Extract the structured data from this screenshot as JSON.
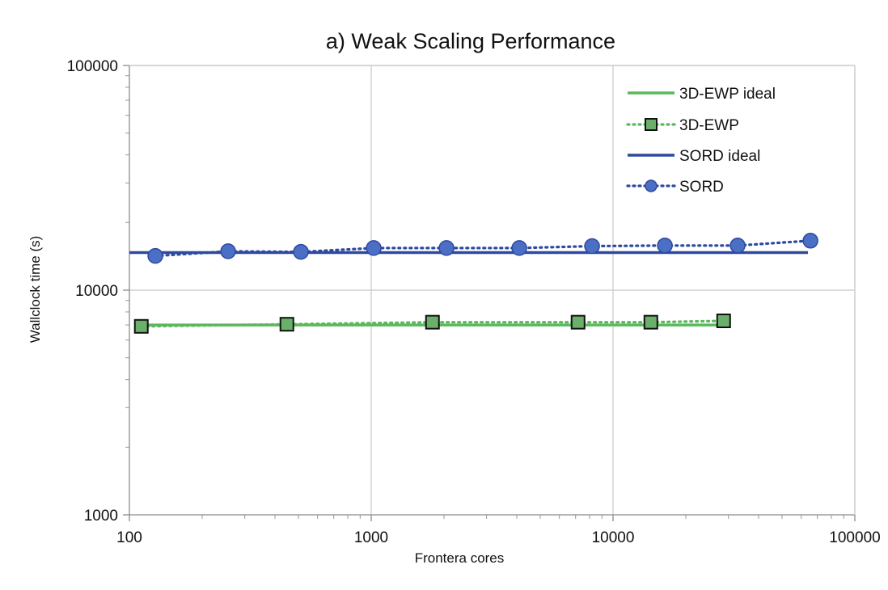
{
  "chart_data": {
    "type": "line",
    "title": "a) Weak Scaling Performance",
    "xlabel": "Frontera cores",
    "ylabel": "Wallclock time (s)",
    "x_scale": "log",
    "y_scale": "log",
    "xlim": [
      100,
      100000
    ],
    "ylim": [
      1000,
      100000
    ],
    "x_ticks": [
      "100",
      "1000",
      "10000",
      "100000"
    ],
    "y_ticks": [
      "1000",
      "10000",
      "100000"
    ],
    "grid": true,
    "legend_position": "top-right",
    "series": [
      {
        "name": "3D-EWP ideal",
        "style": "solid",
        "marker": "none",
        "color": "#5cb85c",
        "points": [
          [
            112,
            7000
          ],
          [
            28672,
            7000
          ]
        ]
      },
      {
        "name": "3D-EWP",
        "style": "dotted",
        "marker": "square",
        "color": "#5cb85c",
        "marker_fill": "#6ab06a",
        "points": [
          [
            112,
            6900
          ],
          [
            448,
            7050
          ],
          [
            1792,
            7200
          ],
          [
            7168,
            7200
          ],
          [
            14336,
            7200
          ],
          [
            28672,
            7300
          ]
        ]
      },
      {
        "name": "SORD ideal",
        "style": "solid",
        "marker": "none",
        "color": "#2e4aa0",
        "points": [
          [
            100,
            14700
          ],
          [
            64000,
            14700
          ]
        ]
      },
      {
        "name": "SORD",
        "style": "dotted",
        "marker": "circle",
        "color": "#2e4aa0",
        "marker_fill": "#4a6fc4",
        "points": [
          [
            128,
            14200
          ],
          [
            256,
            14900
          ],
          [
            512,
            14800
          ],
          [
            1024,
            15400
          ],
          [
            2048,
            15400
          ],
          [
            4096,
            15400
          ],
          [
            8192,
            15700
          ],
          [
            16384,
            15800
          ],
          [
            32768,
            15800
          ],
          [
            65536,
            16600
          ]
        ]
      }
    ]
  }
}
